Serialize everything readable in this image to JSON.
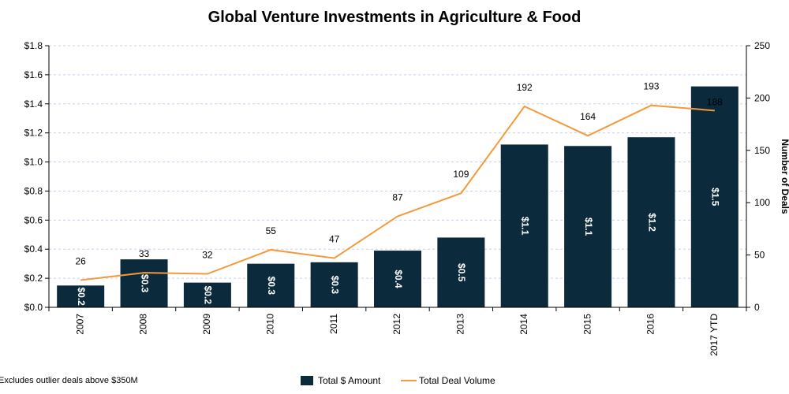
{
  "chart_data": {
    "type": "bar",
    "title": "Global Venture Investments in Agriculture & Food",
    "categories": [
      "2007",
      "2008",
      "2009",
      "2010",
      "2011",
      "2012",
      "2013",
      "2014",
      "2015",
      "2016",
      "2017 YTD"
    ],
    "series": [
      {
        "name": "Total $ Amount",
        "type": "bar",
        "axis": "left",
        "color": "#0b2a3c",
        "values": [
          0.15,
          0.33,
          0.17,
          0.3,
          0.31,
          0.39,
          0.48,
          1.12,
          1.11,
          1.17,
          1.52
        ],
        "labels": [
          "$0.2",
          "$0.3",
          "$0.2",
          "$0.3",
          "$0.3",
          "$0.4",
          "$0.5",
          "$1.1",
          "$1.1",
          "$1.2",
          "$1.5"
        ]
      },
      {
        "name": "Total Deal Volume",
        "type": "line",
        "axis": "right",
        "color": "#f39a3d",
        "values": [
          26,
          33,
          32,
          55,
          47,
          87,
          109,
          192,
          164,
          193,
          188
        ]
      }
    ],
    "y_left": {
      "min": 0,
      "max": 1.8,
      "ticks": [
        0,
        0.2,
        0.4,
        0.6,
        0.8,
        1.0,
        1.2,
        1.4,
        1.6,
        1.8
      ],
      "tick_labels": [
        "$0.0",
        "$0.2",
        "$0.4",
        "$0.6",
        "$0.8",
        "$1.0",
        "$1.2",
        "$1.4",
        "$1.6",
        "$1.8"
      ]
    },
    "y_right": {
      "label": "Number of Deals",
      "min": 0,
      "max": 250,
      "ticks": [
        0,
        50,
        100,
        150,
        200,
        250
      ],
      "tick_labels": [
        "0",
        "50",
        "100",
        "150",
        "200",
        "250"
      ]
    },
    "grid": "horizontal dashed",
    "legend": "bottom-center",
    "footnote": "Excludes outlier deals above $350M"
  }
}
